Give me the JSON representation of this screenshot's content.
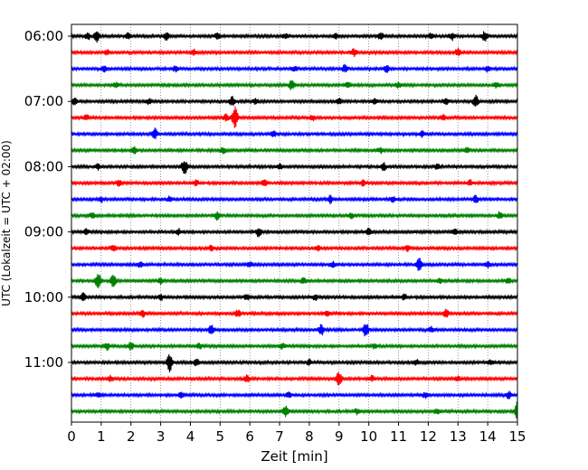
{
  "chart_data": {
    "type": "line",
    "title": "",
    "xlabel": "Zeit  [min]",
    "ylabel": "UTC (Lokalzeit = UTC + 02:00)",
    "xlim": [
      0,
      15
    ],
    "x_ticks": [
      "0",
      "1",
      "2",
      "3",
      "4",
      "5",
      "6",
      "7",
      "8",
      "9",
      "10",
      "11",
      "12",
      "13",
      "14",
      "15"
    ],
    "y_ticks": [
      "06:00",
      "07:00",
      "08:00",
      "09:00",
      "10:00",
      "11:00"
    ],
    "grid": "vertical dotted",
    "trace_colors": [
      "#000000",
      "#ff0000",
      "#0000ff",
      "#008000"
    ],
    "traces": [
      {
        "start": "06:00",
        "events": [
          [
            0.55,
            4
          ],
          [
            0.85,
            6
          ],
          [
            1.9,
            3
          ],
          [
            3.2,
            4
          ],
          [
            4.9,
            4
          ],
          [
            7.2,
            3
          ],
          [
            8.9,
            3
          ],
          [
            10.4,
            4
          ],
          [
            12.1,
            3
          ],
          [
            12.8,
            4
          ],
          [
            13.9,
            5
          ]
        ]
      },
      {
        "start": "06:15",
        "events": [
          [
            1.2,
            3
          ],
          [
            4.1,
            3
          ],
          [
            9.5,
            4
          ],
          [
            13.0,
            4
          ]
        ]
      },
      {
        "start": "06:30",
        "events": [
          [
            1.1,
            3
          ],
          [
            3.5,
            3
          ],
          [
            7.5,
            3
          ],
          [
            9.2,
            4
          ],
          [
            10.6,
            4
          ],
          [
            14.0,
            3
          ]
        ]
      },
      {
        "start": "06:45",
        "events": [
          [
            1.5,
            3
          ],
          [
            7.4,
            5
          ],
          [
            9.3,
            3
          ],
          [
            11.0,
            3
          ],
          [
            14.3,
            3
          ]
        ]
      },
      {
        "start": "07:00",
        "events": [
          [
            0.1,
            4
          ],
          [
            2.6,
            3
          ],
          [
            5.4,
            5
          ],
          [
            6.2,
            3
          ],
          [
            9.0,
            3
          ],
          [
            10.2,
            4
          ],
          [
            12.6,
            4
          ],
          [
            13.6,
            7
          ]
        ]
      },
      {
        "start": "07:15",
        "events": [
          [
            0.5,
            3
          ],
          [
            5.5,
            13
          ],
          [
            5.2,
            4
          ],
          [
            8.1,
            3
          ],
          [
            12.5,
            3
          ]
        ]
      },
      {
        "start": "07:30",
        "events": [
          [
            2.8,
            6
          ],
          [
            6.8,
            3
          ],
          [
            11.8,
            3
          ]
        ]
      },
      {
        "start": "07:45",
        "events": [
          [
            2.1,
            4
          ],
          [
            5.1,
            3
          ],
          [
            10.4,
            3
          ],
          [
            13.3,
            3
          ]
        ]
      },
      {
        "start": "08:00",
        "events": [
          [
            0.9,
            3
          ],
          [
            3.8,
            9
          ],
          [
            7.0,
            3
          ],
          [
            10.5,
            4
          ],
          [
            12.3,
            3
          ]
        ]
      },
      {
        "start": "08:15",
        "events": [
          [
            1.6,
            3
          ],
          [
            4.2,
            3
          ],
          [
            6.5,
            4
          ],
          [
            9.8,
            3
          ],
          [
            13.4,
            3
          ]
        ]
      },
      {
        "start": "08:30",
        "events": [
          [
            1.0,
            3
          ],
          [
            3.3,
            3
          ],
          [
            8.7,
            4
          ],
          [
            10.8,
            3
          ],
          [
            13.6,
            4
          ]
        ]
      },
      {
        "start": "08:45",
        "events": [
          [
            0.7,
            3
          ],
          [
            4.9,
            4
          ],
          [
            9.4,
            3
          ],
          [
            14.4,
            4
          ]
        ]
      },
      {
        "start": "09:00",
        "events": [
          [
            0.5,
            3
          ],
          [
            3.6,
            3
          ],
          [
            6.3,
            5
          ],
          [
            10.0,
            4
          ],
          [
            12.9,
            3
          ]
        ]
      },
      {
        "start": "09:15",
        "events": [
          [
            1.4,
            3
          ],
          [
            4.7,
            3
          ],
          [
            8.3,
            3
          ],
          [
            11.3,
            3
          ]
        ]
      },
      {
        "start": "09:30",
        "events": [
          [
            2.3,
            3
          ],
          [
            6.0,
            3
          ],
          [
            8.8,
            3
          ],
          [
            11.7,
            7
          ],
          [
            14.0,
            3
          ]
        ]
      },
      {
        "start": "09:45",
        "events": [
          [
            0.9,
            9
          ],
          [
            1.4,
            7
          ],
          [
            3.0,
            3
          ],
          [
            7.8,
            3
          ],
          [
            12.4,
            3
          ],
          [
            14.7,
            3
          ]
        ]
      },
      {
        "start": "10:00",
        "events": [
          [
            0.4,
            4
          ],
          [
            3.0,
            3
          ],
          [
            5.9,
            3
          ],
          [
            8.2,
            3
          ],
          [
            11.2,
            3
          ]
        ]
      },
      {
        "start": "10:15",
        "events": [
          [
            2.4,
            4
          ],
          [
            5.6,
            4
          ],
          [
            8.6,
            3
          ],
          [
            12.6,
            5
          ]
        ]
      },
      {
        "start": "10:30",
        "events": [
          [
            4.7,
            5
          ],
          [
            8.4,
            6
          ],
          [
            9.9,
            8
          ],
          [
            12.1,
            3
          ]
        ]
      },
      {
        "start": "10:45",
        "events": [
          [
            1.2,
            4
          ],
          [
            2.0,
            4
          ],
          [
            4.3,
            3
          ],
          [
            7.1,
            3
          ],
          [
            10.2,
            3
          ]
        ]
      },
      {
        "start": "11:00",
        "events": [
          [
            3.3,
            10
          ],
          [
            4.2,
            4
          ],
          [
            8.0,
            3
          ],
          [
            11.6,
            3
          ],
          [
            14.1,
            3
          ]
        ]
      },
      {
        "start": "11:15",
        "events": [
          [
            1.3,
            3
          ],
          [
            5.9,
            4
          ],
          [
            9.0,
            8
          ],
          [
            10.1,
            3
          ],
          [
            13.0,
            3
          ]
        ]
      },
      {
        "start": "11:30",
        "events": [
          [
            0.9,
            3
          ],
          [
            3.7,
            3
          ],
          [
            7.3,
            3
          ],
          [
            11.9,
            3
          ],
          [
            14.7,
            4
          ]
        ]
      },
      {
        "start": "11:45",
        "events": [
          [
            7.2,
            6
          ],
          [
            9.6,
            3
          ],
          [
            12.3,
            3
          ],
          [
            15.0,
            11
          ]
        ]
      }
    ]
  }
}
